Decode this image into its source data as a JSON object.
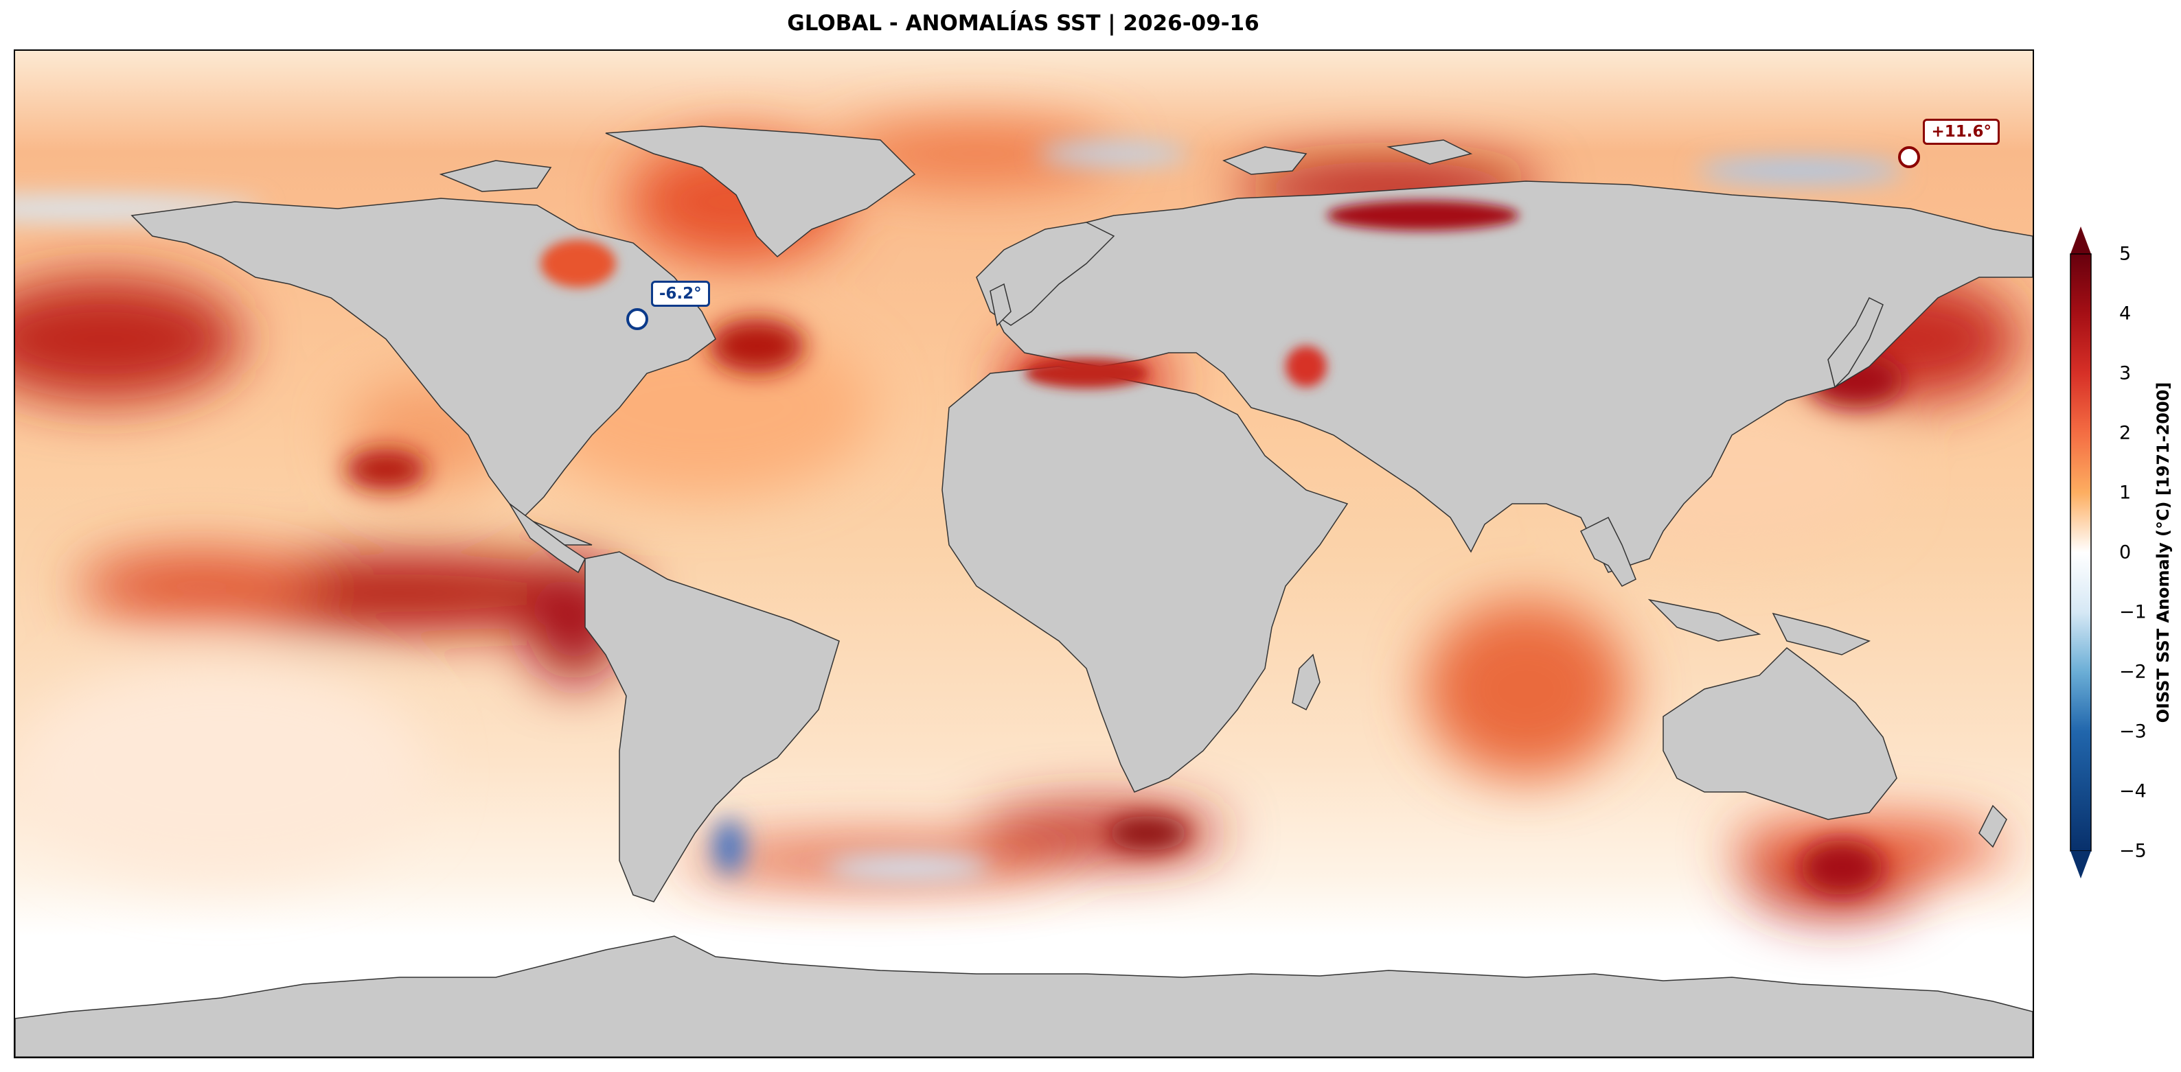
{
  "title": "GLOBAL - ANOMALÍAS SST | 2026-09-16",
  "colorbar": {
    "label": "OISST SST Anomaly (°C) [1971-2000]",
    "ticks": [
      "5",
      "4",
      "3",
      "2",
      "1",
      "0",
      "−1",
      "−2",
      "−3",
      "−4",
      "−5"
    ],
    "range": [
      -5,
      5
    ],
    "colors": [
      "#08306b",
      "#2166ac",
      "#6baed6",
      "#d6e8f5",
      "#ffffff",
      "#fde0b6",
      "#fdae61",
      "#f46d43",
      "#d73027",
      "#a50f15",
      "#67000d"
    ]
  },
  "annotations": {
    "min": {
      "label": "-6.2°",
      "lat": 42,
      "lon": -69
    },
    "max": {
      "label": "+11.6°",
      "lat": 71,
      "lon": 158
    }
  },
  "map": {
    "projection": "equirectangular",
    "land_color": "#c9c9c9",
    "coast_color": "#333333"
  }
}
